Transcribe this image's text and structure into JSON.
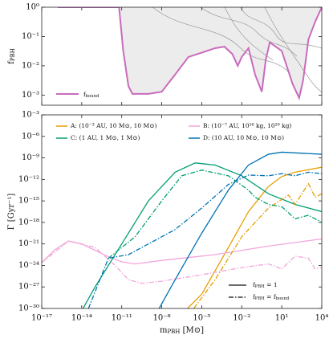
{
  "chart_data": [
    {
      "type": "line",
      "log_x": true,
      "log_y": true,
      "y_label": [
        {
          "text": "f",
          "sub": "PBH"
        }
      ],
      "xlim": [
        1e-17,
        10000
      ],
      "ylim": [
        0.00045,
        1
      ],
      "yticks": [
        {
          "value": 1,
          "label": "10⁰"
        },
        {
          "value": 0.1,
          "label": "10⁻¹"
        },
        {
          "value": 0.01,
          "label": "10⁻²"
        },
        {
          "value": 0.001,
          "label": "10⁻³"
        }
      ],
      "shade": "#ececec",
      "series": [
        {
          "name": [
            {
              "text": "f",
              "sub": "bound"
            }
          ],
          "color": "#c96bbd",
          "x": [
            1.6e-16,
            6.3e-12,
            1.3e-11,
            3.2e-11,
            6.3e-11,
            1e-09,
            1e-08,
            1e-07,
            1e-06,
            1e-05,
            0.0001,
            0.0005,
            0.002,
            0.005,
            0.01,
            0.032,
            0.1,
            0.32,
            0.63,
            1.26,
            10,
            63,
            200,
            400,
            1000,
            3200,
            10000
          ],
          "values": [
            1,
            1,
            0.032,
            0.002,
            0.0011,
            0.0011,
            0.0013,
            0.005,
            0.02,
            0.028,
            0.04,
            0.045,
            0.025,
            0.01,
            0.02,
            0.04,
            0.005,
            0.0013,
            0.016,
            0.063,
            0.032,
            0.0025,
            0.0008,
            0.0032,
            0.079,
            0.32,
            1
          ]
        }
      ]
    },
    {
      "type": "line",
      "log_x": true,
      "log_y": true,
      "x_label": [
        {
          "text": "m",
          "sub": "PBH"
        },
        {
          "text": " [M⊙]"
        }
      ],
      "y_label": [
        {
          "text": "Γ [Gyr⁻¹]"
        }
      ],
      "xlim": [
        1e-17,
        10000
      ],
      "ylim": [
        1e-30,
        0.001
      ],
      "xticks": [
        {
          "value": 1e-17,
          "label": "10⁻¹⁷"
        },
        {
          "value": 1e-14,
          "label": "10⁻¹⁴"
        },
        {
          "value": 1e-11,
          "label": "10⁻¹¹"
        },
        {
          "value": 1e-08,
          "label": "10⁻⁸"
        },
        {
          "value": 1e-05,
          "label": "10⁻⁵"
        },
        {
          "value": 0.01,
          "label": "10⁻²"
        },
        {
          "value": 10,
          "label": "10¹"
        },
        {
          "value": 10000,
          "label": "10⁴"
        }
      ],
      "yticks": [
        {
          "value": 0.001,
          "label": "10⁻³"
        },
        {
          "value": 1e-06,
          "label": "10⁻⁶"
        },
        {
          "value": 1e-09,
          "label": "10⁻⁹"
        },
        {
          "value": 1e-12,
          "label": "10⁻¹²"
        },
        {
          "value": 1e-15,
          "label": "10⁻¹⁵"
        },
        {
          "value": 1e-18,
          "label": "10⁻¹⁸"
        },
        {
          "value": 1e-21,
          "label": "10⁻²¹"
        },
        {
          "value": 1e-24,
          "label": "10⁻²⁴"
        },
        {
          "value": 1e-27,
          "label": "10⁻²⁷"
        },
        {
          "value": 1e-30,
          "label": "10⁻³⁰"
        }
      ],
      "series": [
        {
          "name": "A: (10⁻³ AU, 10 M⊙, 10 M⊙)",
          "color": "#e69f00",
          "dash": "solid",
          "x": [
            2.5e-07,
            1e-05,
            0.001,
            0.032,
            1,
            10,
            100,
            10000
          ],
          "values": [
            1e-31,
            1e-28,
            3.2e-22,
            3.2e-17,
            1e-13,
            2.5e-12,
            1e-11,
            5e-11
          ]
        },
        {
          "name": "B: (10⁻⁷ AU, 10¹⁶ kg, 10²⁰ kg)",
          "color": "#f2a6da",
          "dash": "solid",
          "x": [
            1e-17,
            1e-16,
            1e-15,
            1e-14,
            1e-12,
            1e-11,
            1e-10,
            1e-08,
            0.0001,
            1,
            10000
          ],
          "values": [
            2.5e-24,
            1.6e-22,
            2.5e-21,
            1e-21,
            1.6e-23,
            3.2e-24,
            1.6e-24,
            5e-24,
            3.2e-23,
            5e-22,
            5e-21
          ]
        },
        {
          "name": "C: (1 AU, 1 M⊙, 1 M⊙)",
          "color": "#009e73",
          "dash": "solid",
          "x": [
            6.3e-15,
            1e-13,
            1e-11,
            1e-09,
            1e-07,
            3.2e-06,
            0.0001,
            0.01,
            1,
            100,
            10000
          ],
          "values": [
            1e-31,
            1e-27,
            1e-21,
            1e-15,
            1e-11,
            2e-10,
            1e-10,
            3.2e-12,
            1e-14,
            3.2e-16,
            3.2e-17
          ]
        },
        {
          "name": "D: (10 AU, 10 M⊙, 10 M⊙)",
          "color": "#0072b2",
          "dash": "solid",
          "x": [
            3.2e-09,
            1e-07,
            1e-05,
            0.001,
            0.032,
            1,
            10,
            100,
            10000
          ],
          "values": [
            1e-31,
            1e-26,
            3.2e-20,
            3.2e-14,
            1e-10,
            3.2e-09,
            6.3e-09,
            5e-09,
            3.2e-09
          ]
        },
        {
          "color": "#e69f00",
          "dash": "dashdot",
          "x": [
            1e-06,
            0.0001,
            0.01,
            1,
            10,
            32,
            100,
            320,
            1000,
            3200,
            10000
          ],
          "values": [
            1e-31,
            1e-26,
            1e-20,
            1e-16,
            1.6e-15,
            6.3e-15,
            3.2e-16,
            1e-14,
            2.5e-13,
            3.2e-15,
            1e-14
          ]
        },
        {
          "color": "#f2a6da",
          "dash": "dashdot",
          "x": [
            1e-17,
            1e-15,
            1e-13,
            3.2e-12,
            3.2e-11,
            3.2e-10,
            1e-08,
            1e-05,
            0.01,
            1,
            10,
            100,
            1000,
            3200,
            10000
          ],
          "values": [
            2.5e-24,
            2.5e-21,
            3.2e-22,
            1e-24,
            1e-26,
            3.2e-27,
            6.3e-27,
            5e-26,
            5e-25,
            1.6e-24,
            3.2e-25,
            2e-23,
            1e-23,
            3.2e-25,
            5e-25
          ]
        },
        {
          "color": "#009e73",
          "dash": "dashdot",
          "x": [
            1e-12,
            1e-10,
            1e-08,
            3.2e-07,
            1e-05,
            0.001,
            0.032,
            0.1,
            1,
            10,
            100,
            1000,
            10000
          ],
          "values": [
            1e-23,
            1e-20,
            1e-15,
            3.2e-12,
            2e-11,
            3.2e-12,
            3.2e-14,
            3.2e-15,
            3.2e-16,
            1.6e-16,
            3.2e-18,
            1e-17,
            1e-18
          ]
        },
        {
          "color": "#0072b2",
          "dash": "dashdot",
          "x": [
            3.2e-14,
            1e-12,
            3.2e-11,
            1e-09,
            1e-07,
            1e-05,
            0.001,
            0.032,
            1,
            10,
            100,
            1000,
            10000
          ],
          "values": [
            1e-30,
            1e-23,
            3.2e-23,
            1e-21,
            1e-19,
            1e-16,
            2e-13,
            4e-12,
            3.2e-12,
            6.3e-12,
            3.2e-12,
            1e-11,
            6.3e-12
          ]
        }
      ],
      "style_legend": [
        {
          "label": [
            {
              "text": "f",
              "sub": "PBH"
            },
            {
              "text": " = 1"
            }
          ],
          "dash": "solid"
        },
        {
          "label": [
            {
              "text": "f",
              "sub": "PBH"
            },
            {
              "text": " = f",
              "sub": "bound"
            }
          ],
          "dash": "dashdot"
        }
      ]
    }
  ]
}
